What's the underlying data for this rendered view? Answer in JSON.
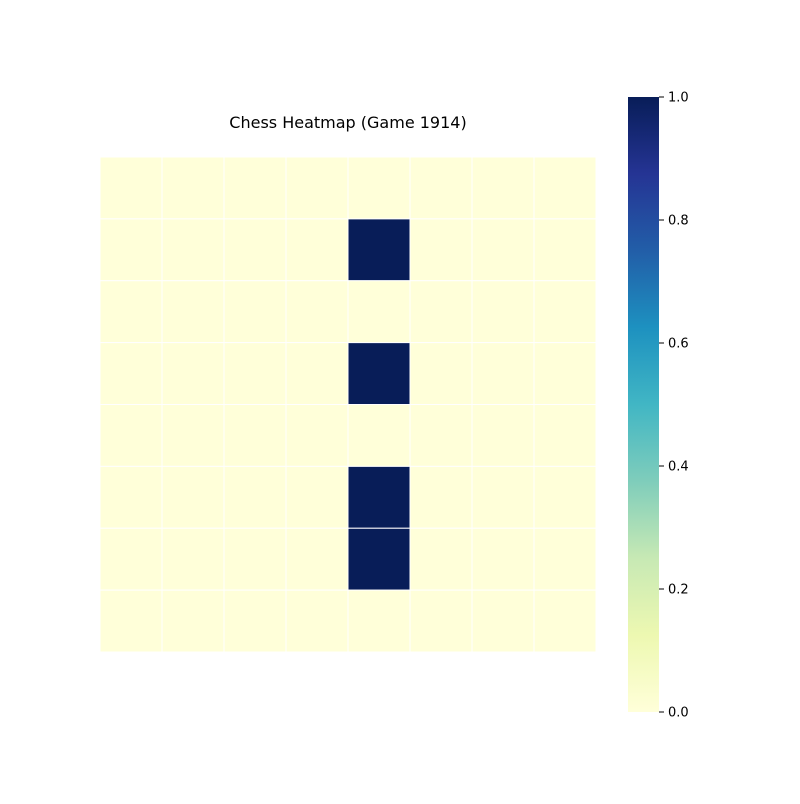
{
  "chart_data": {
    "type": "heatmap",
    "title": "Chess Heatmap (Game 1914)",
    "xlabel": "",
    "ylabel": "",
    "rows": 8,
    "cols": 8,
    "values": [
      [
        0,
        0,
        0,
        0,
        0,
        0,
        0,
        0
      ],
      [
        0,
        0,
        0,
        0,
        1,
        0,
        0,
        0
      ],
      [
        0,
        0,
        0,
        0,
        0,
        0,
        0,
        0
      ],
      [
        0,
        0,
        0,
        0,
        1,
        0,
        0,
        0
      ],
      [
        0,
        0,
        0,
        0,
        0,
        0,
        0,
        0
      ],
      [
        0,
        0,
        0,
        0,
        1,
        0,
        0,
        0
      ],
      [
        0,
        0,
        0,
        0,
        1,
        0,
        0,
        0
      ],
      [
        0,
        0,
        0,
        0,
        0,
        0,
        0,
        0
      ]
    ],
    "colorbar": {
      "range": [
        0.0,
        1.0
      ],
      "ticks": [
        "0.0",
        "0.2",
        "0.4",
        "0.6",
        "0.8",
        "1.0"
      ],
      "colormap": "YlGnBu"
    },
    "gridlines": "white"
  }
}
